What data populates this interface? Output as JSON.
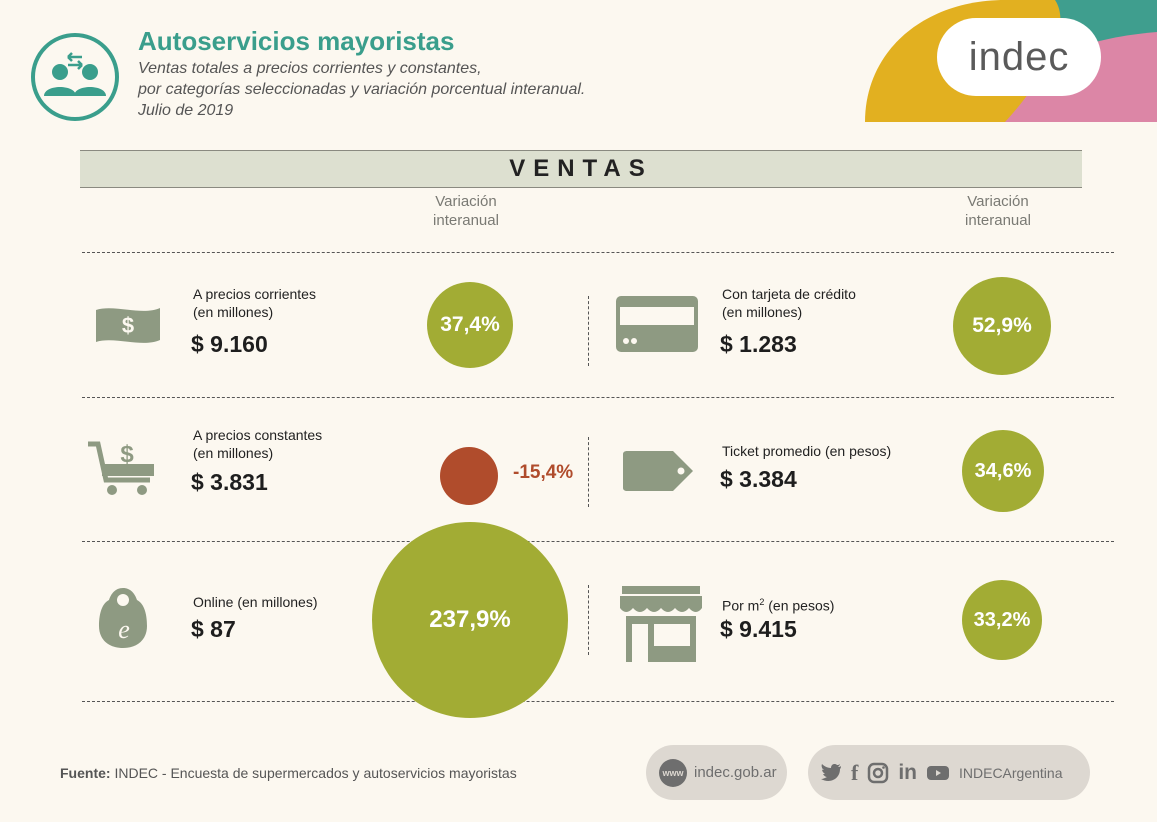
{
  "header": {
    "title": "Autoservicios mayoristas",
    "subtitle_1": "Ventas totales a precios corrientes y constantes,",
    "subtitle_2": "por categorías seleccionadas y variación porcentual interanual.",
    "date": "Julio de 2019",
    "logo": "indec",
    "logo_icon": "people-exchange-icon"
  },
  "section_title": "VENTAS",
  "variation_header": [
    "Variación",
    "interanual"
  ],
  "left_items": [
    {
      "icon": "banknote-icon",
      "label_1": "A precios corrientes",
      "label_2": "(en millones)",
      "value": "$ 9.160",
      "variation": "37,4%"
    },
    {
      "icon": "shopping-cart-dollar-icon",
      "label_1": "A precios constantes",
      "label_2": "(en millones)",
      "value": "$ 3.831",
      "variation": "-15,4%"
    },
    {
      "icon": "online-tag-icon",
      "label_1": "Online (en millones)",
      "value": "$ 87",
      "variation": "237,9%"
    }
  ],
  "right_items": [
    {
      "icon": "credit-card-icon",
      "label_1": "Con tarjeta de crédito",
      "label_2": "(en millones)",
      "value": "$ 1.283",
      "variation": "52,9%"
    },
    {
      "icon": "price-tag-icon",
      "label_1": "Ticket promedio (en pesos)",
      "value": "$ 3.384",
      "variation": "34,6%"
    },
    {
      "icon": "storefront-icon",
      "label_1": "Por m",
      "label_sup": "2",
      "label_rest": " (en pesos)",
      "value": "$ 9.415",
      "variation": "33,2%"
    }
  ],
  "footer": {
    "source_label": "Fuente:",
    "source_text": "INDEC - Encuesta de supermercados y autoservicios mayoristas",
    "www_badge": "www",
    "website": "indec.gob.ar",
    "social_handle": "INDECArgentina"
  },
  "colors": {
    "teal": "#3a9e8c",
    "olive": "#a2ac34",
    "rust": "#b04c2c",
    "yellow": "#e2b020",
    "pink": "#dc86a6",
    "icon_gray": "#8e9a82"
  }
}
